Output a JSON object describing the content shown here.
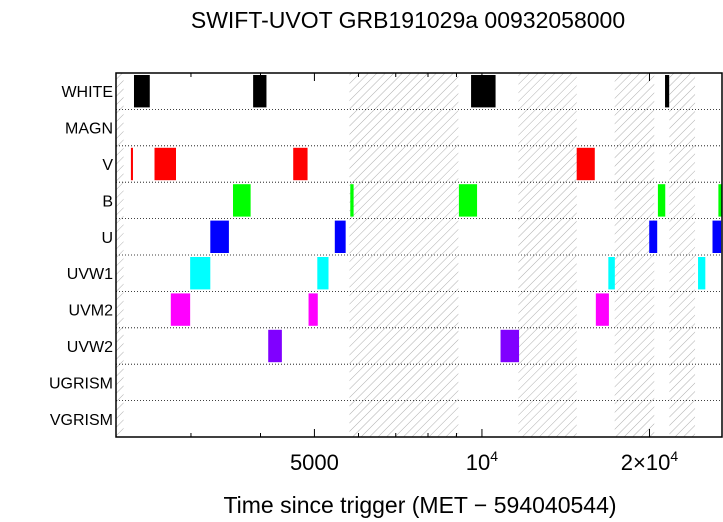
{
  "chart_data": {
    "type": "timeline",
    "title": "SWIFT-UVOT GRB191029a 00932058000",
    "xlabel": "Time since trigger (MET − 594040544)",
    "x_scale": "log",
    "xlim": [
      2200,
      27000
    ],
    "x_ticks": [
      {
        "value": 5000,
        "label": "5000"
      },
      {
        "value": 10000,
        "label": "10",
        "exp": "4"
      },
      {
        "value": 20000,
        "label": "2×10",
        "exp": "4"
      }
    ],
    "filters": [
      "WHITE",
      "MAGN",
      "V",
      "B",
      "U",
      "UVW1",
      "UVM2",
      "UVW2",
      "UGRISM",
      "VGRISM"
    ],
    "filter_colors": {
      "WHITE": "#000000",
      "MAGN": "#888888",
      "V": "#ff0000",
      "B": "#00ff00",
      "U": "#0000ff",
      "UVW1": "#00ffff",
      "UVM2": "#ff00ff",
      "UVW2": "#8000ff",
      "UGRISM": "#000000",
      "VGRISM": "#000000"
    },
    "no_data_intervals": [
      [
        2200,
        2270
      ],
      [
        5780,
        9070
      ],
      [
        11630,
        14800
      ],
      [
        17320,
        20400
      ],
      [
        21720,
        24150
      ]
    ],
    "exposures": [
      {
        "filter": "WHITE",
        "start": 2370,
        "end": 2530
      },
      {
        "filter": "WHITE",
        "start": 3880,
        "end": 4100
      },
      {
        "filter": "WHITE",
        "start": 9560,
        "end": 10580
      },
      {
        "filter": "WHITE",
        "start": 21330,
        "end": 21700
      },
      {
        "filter": "V",
        "start": 2340,
        "end": 2360
      },
      {
        "filter": "V",
        "start": 2580,
        "end": 2820
      },
      {
        "filter": "V",
        "start": 4580,
        "end": 4860
      },
      {
        "filter": "V",
        "start": 14800,
        "end": 15950
      },
      {
        "filter": "B",
        "start": 3570,
        "end": 3840
      },
      {
        "filter": "B",
        "start": 5800,
        "end": 5880
      },
      {
        "filter": "B",
        "start": 9090,
        "end": 9800
      },
      {
        "filter": "B",
        "start": 20710,
        "end": 21350
      },
      {
        "filter": "B",
        "start": 26600,
        "end": 27000
      },
      {
        "filter": "U",
        "start": 3250,
        "end": 3510
      },
      {
        "filter": "U",
        "start": 5440,
        "end": 5690
      },
      {
        "filter": "U",
        "start": 19980,
        "end": 20650
      },
      {
        "filter": "U",
        "start": 25960,
        "end": 26900
      },
      {
        "filter": "UVW1",
        "start": 2990,
        "end": 3250
      },
      {
        "filter": "UVW1",
        "start": 5060,
        "end": 5300
      },
      {
        "filter": "UVW1",
        "start": 16870,
        "end": 17330
      },
      {
        "filter": "UVW1",
        "start": 24450,
        "end": 25200
      },
      {
        "filter": "UVM2",
        "start": 2760,
        "end": 2990
      },
      {
        "filter": "UVM2",
        "start": 4880,
        "end": 5070
      },
      {
        "filter": "UVM2",
        "start": 16020,
        "end": 16910
      },
      {
        "filter": "UVW2",
        "start": 4130,
        "end": 4370
      },
      {
        "filter": "UVW2",
        "start": 10800,
        "end": 11660
      }
    ]
  }
}
